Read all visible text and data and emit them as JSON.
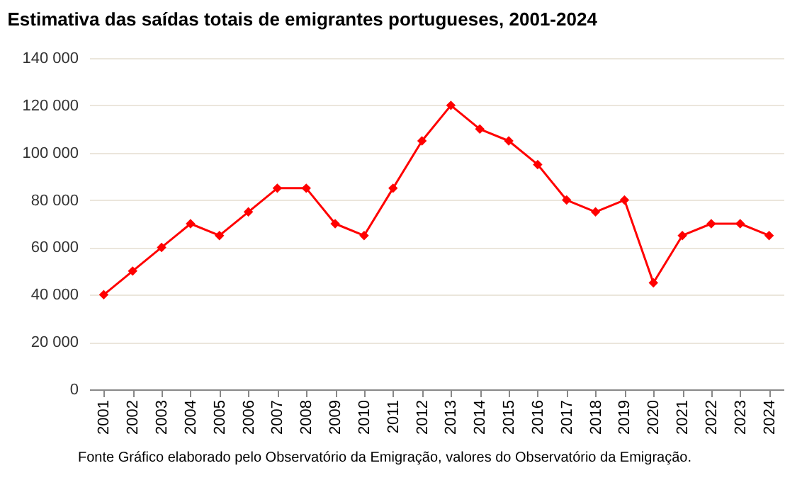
{
  "chart_data": {
    "type": "line",
    "title": "Estimativa das saídas totais de emigrantes portugueses, 2001-2024",
    "categories": [
      "2001",
      "2002",
      "2003",
      "2004",
      "2005",
      "2006",
      "2007",
      "2008",
      "2009",
      "2010",
      "2011",
      "2012",
      "2013",
      "2014",
      "2015",
      "2016",
      "2017",
      "2018",
      "2019",
      "2020",
      "2021",
      "2022",
      "2023",
      "2024"
    ],
    "series": [
      {
        "color": "#ff0000",
        "values": [
          40000,
          50000,
          60000,
          70000,
          65000,
          75000,
          85000,
          85000,
          70000,
          65000,
          85000,
          105000,
          120000,
          110000,
          105000,
          95000,
          80000,
          75000,
          80000,
          45000,
          65000,
          70000,
          70000,
          65000
        ]
      }
    ],
    "ylim": [
      0,
      140000
    ],
    "yticks": [
      0,
      {
        "value": 20000,
        "label": "20 000"
      },
      {
        "value": 40000,
        "label": "40 000"
      },
      {
        "value": 60000,
        "label": "60 000"
      },
      {
        "value": 80000,
        "label": "80 000"
      },
      {
        "value": 100000,
        "label": "100 000"
      },
      {
        "value": 120000,
        "label": "120 000"
      },
      {
        "value": 140000,
        "label": "140 000"
      }
    ],
    "grid": "y",
    "marker": "diamond",
    "line_style": "solid",
    "annotations": [
      "Fonte  Gráfico elaborado pelo Observatório da Emigração, valores do Observatório da Emigração."
    ]
  }
}
